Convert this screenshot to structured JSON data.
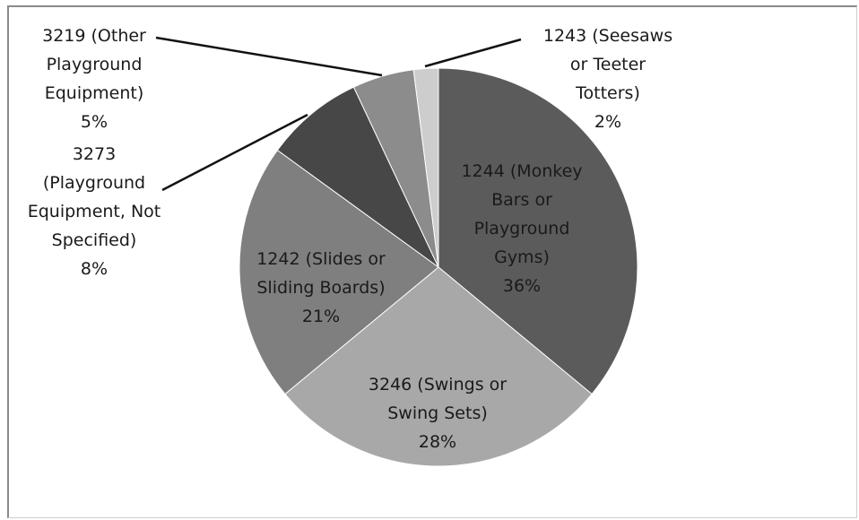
{
  "chart_data": {
    "type": "pie",
    "title": "",
    "slices": [
      {
        "label_lines": [
          "1244 (Monkey",
          "Bars or",
          "Playground",
          "Gyms)",
          "36%"
        ],
        "value": 36,
        "color": "#5b5b5b"
      },
      {
        "label_lines": [
          "3246 (Swings or",
          "Swing Sets)",
          "28%"
        ],
        "value": 28,
        "color": "#a8a8a8"
      },
      {
        "label_lines": [
          "1242 (Slides or",
          "Sliding Boards)",
          "21%"
        ],
        "value": 21,
        "color": "#7f7f7f"
      },
      {
        "label_lines": [
          "3273",
          "(Playground",
          "Equipment, Not",
          "Specified)",
          "8%"
        ],
        "value": 8,
        "color": "#474747"
      },
      {
        "label_lines": [
          "3219 (Other",
          "Playground",
          "Equipment)",
          "5%"
        ],
        "value": 5,
        "color": "#8c8c8c"
      },
      {
        "label_lines": [
          "1243 (Seesaws",
          "or Teeter",
          "Totters)",
          "2%"
        ],
        "value": 2,
        "color": "#cdcdcd"
      }
    ],
    "legend": "none",
    "label_color": "#1a1a1a"
  }
}
